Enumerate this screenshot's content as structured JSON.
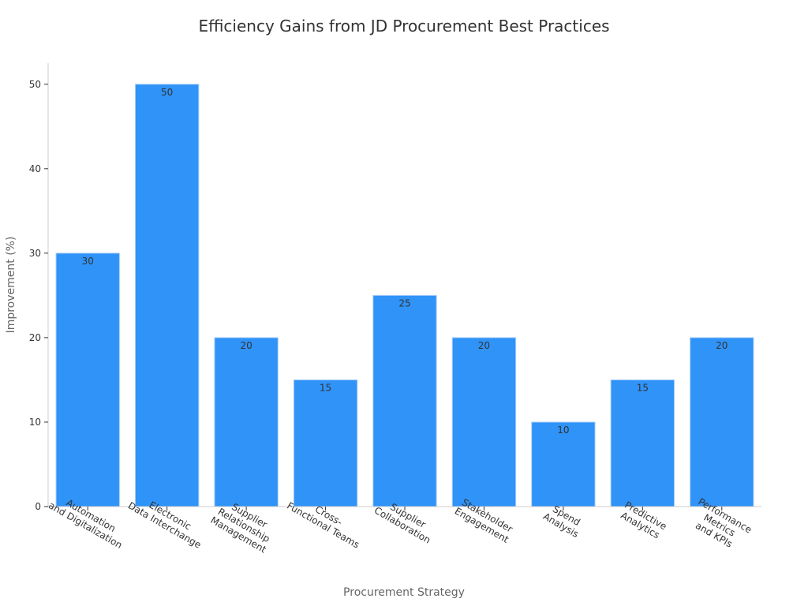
{
  "chart_data": {
    "type": "bar",
    "title": "Efficiency Gains from JD Procurement Best Practices",
    "xlabel": "Procurement Strategy",
    "ylabel": "Improvement (%)",
    "ylim": [
      0,
      52.5
    ],
    "yticks": [
      0,
      10,
      20,
      30,
      40,
      50
    ],
    "grid": false,
    "categories": [
      "Automation\nand Digitalization",
      "Electronic\nData Interchange",
      "Supplier\nRelationship\nManagement",
      "Cross-\nFunctional Teams",
      "Supplier\nCollaboration",
      "Stakeholder\nEngagement",
      "Spend\nAnalysis",
      "Predictive\nAnalytics",
      "Performance\nMetrics\nand KPIs"
    ],
    "values": [
      30,
      50,
      20,
      15,
      25,
      20,
      10,
      15,
      20
    ],
    "colors": {
      "bar": "#2f93f8",
      "bar_edge": "#a9cdf7",
      "axis": "#cccccc",
      "text": "#333333",
      "axis_title": "#666666"
    }
  }
}
